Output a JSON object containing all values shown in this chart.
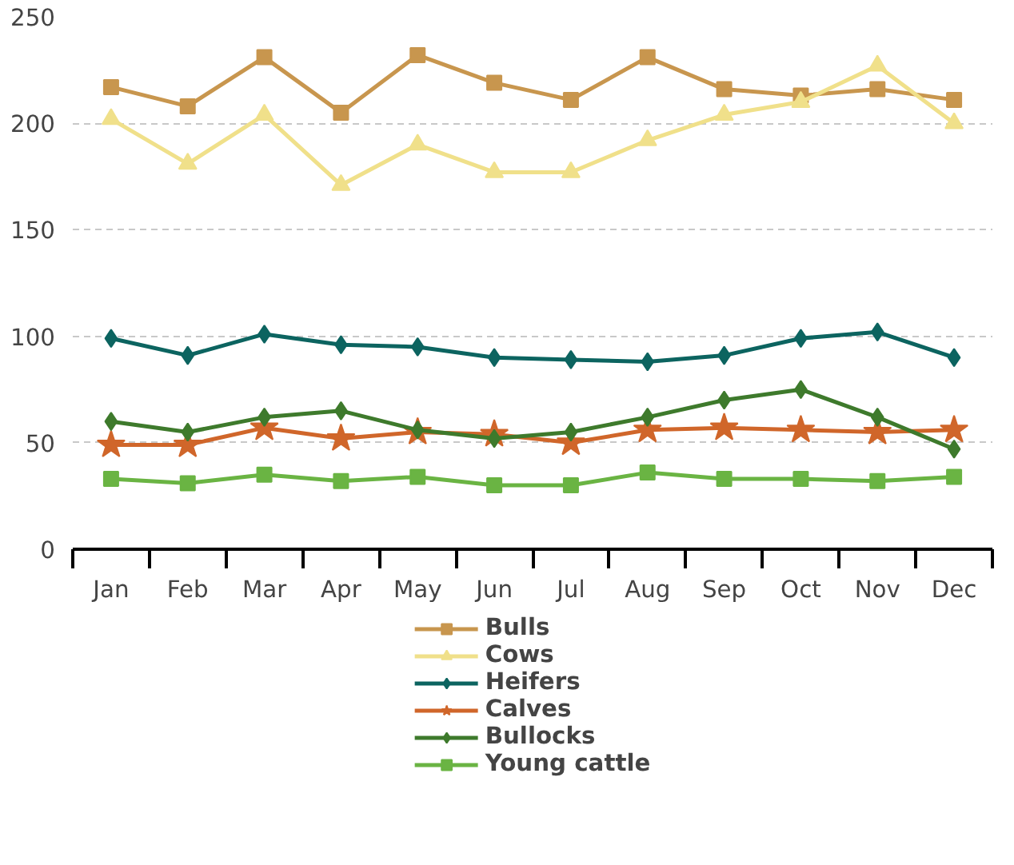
{
  "chart_data": {
    "type": "line",
    "categories": [
      "Jan",
      "Feb",
      "Mar",
      "Apr",
      "May",
      "Jun",
      "Jul",
      "Aug",
      "Sep",
      "Oct",
      "Nov",
      "Dec"
    ],
    "ylim": [
      0,
      250
    ],
    "yticks": [
      0,
      50,
      100,
      150,
      200,
      250
    ],
    "grid": "y",
    "legend": "bottom",
    "line_style": "solid",
    "series": [
      {
        "name": "Bulls",
        "color": "#c8964e",
        "marker": "square",
        "values": [
          217,
          208,
          231,
          205,
          232,
          219,
          211,
          231,
          216,
          213,
          216,
          211
        ]
      },
      {
        "name": "Cows",
        "color": "#f0e08a",
        "marker": "triangle",
        "values": [
          202,
          181,
          204,
          171,
          190,
          177,
          177,
          192,
          204,
          210,
          227,
          200
        ]
      },
      {
        "name": "Heifers",
        "color": "#0c6460",
        "marker": "diamond",
        "values": [
          99,
          91,
          101,
          96,
          95,
          90,
          89,
          88,
          91,
          99,
          102,
          90
        ]
      },
      {
        "name": "Calves",
        "color": "#d0662a",
        "marker": "star",
        "values": [
          49,
          49,
          57,
          52,
          55,
          54,
          50,
          56,
          57,
          56,
          55,
          56
        ]
      },
      {
        "name": "Bullocks",
        "color": "#3e7a2c",
        "marker": "diamond",
        "values": [
          60,
          55,
          62,
          65,
          56,
          52,
          55,
          62,
          70,
          75,
          62,
          47
        ]
      },
      {
        "name": "Young cattle",
        "color": "#6ab443",
        "marker": "square",
        "values": [
          33,
          31,
          35,
          32,
          34,
          30,
          30,
          36,
          33,
          33,
          32,
          34
        ]
      }
    ]
  }
}
